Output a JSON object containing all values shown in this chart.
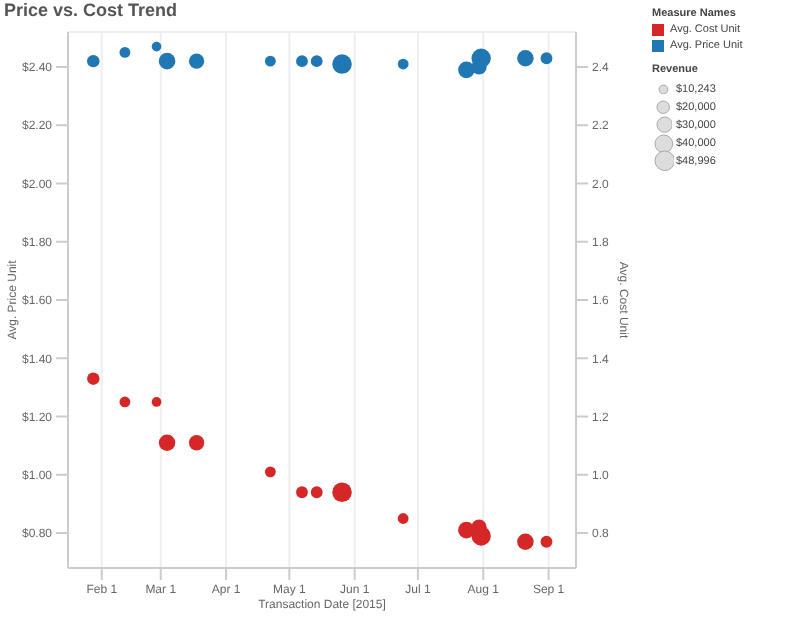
{
  "chart_data": {
    "type": "scatter",
    "title": "Price vs. Cost Trend",
    "xlabel": "Transaction Date [2015]",
    "ylabel": "Avg. Price Unit",
    "y2label": "Avg. Cost Unit",
    "legend_title": "Measure Names",
    "grid": true,
    "legend": "right",
    "marker": "circle",
    "x": [
      "2015-01-28",
      "2015-02-12",
      "2015-02-27",
      "2015-03-04",
      "2015-03-18",
      "2015-04-22",
      "2015-05-07",
      "2015-05-14",
      "2015-05-26",
      "2015-06-24",
      "2015-07-24",
      "2015-07-30",
      "2015-07-31",
      "2015-08-21",
      "2015-08-31"
    ],
    "series": [
      {
        "name": "Avg. Cost Unit",
        "color": "#d62728",
        "axis": "y2",
        "values": [
          1.33,
          1.25,
          1.25,
          1.11,
          1.11,
          1.01,
          0.94,
          0.94,
          0.94,
          0.85,
          0.81,
          0.82,
          0.79,
          0.77,
          0.77
        ],
        "sizes": [
          20000,
          15000,
          12000,
          35000,
          30000,
          15000,
          18000,
          18000,
          48996,
          15000,
          35000,
          30000,
          48000,
          35000,
          18000
        ]
      },
      {
        "name": "Avg. Price Unit",
        "color": "#1f77b4",
        "values": [
          2.42,
          2.45,
          2.47,
          2.42,
          2.42,
          2.42,
          2.42,
          2.42,
          2.41,
          2.41,
          2.39,
          2.4,
          2.43,
          2.43,
          2.43
        ],
        "sizes": [
          20000,
          15000,
          12000,
          35000,
          30000,
          15000,
          18000,
          18000,
          48996,
          15000,
          35000,
          30000,
          48000,
          35000,
          18000
        ]
      }
    ],
    "annotations": [
      "Revenue"
    ],
    "size_legend": [
      {
        "value": 10243,
        "label": "$10,243"
      },
      {
        "value": 20000,
        "label": "$20,000"
      },
      {
        "value": 30000,
        "label": "$30,000"
      },
      {
        "value": 40000,
        "label": "$40,000"
      },
      {
        "value": 48996,
        "label": "$48,996"
      }
    ],
    "xlim": [
      "2015-01-16",
      "2015-09-14"
    ],
    "xticks": [
      {
        "value": "2015-02-01",
        "label": "Feb 1"
      },
      {
        "value": "2015-03-01",
        "label": "Mar 1"
      },
      {
        "value": "2015-04-01",
        "label": "Apr 1"
      },
      {
        "value": "2015-05-01",
        "label": "May 1"
      },
      {
        "value": "2015-06-01",
        "label": "Jun 1"
      },
      {
        "value": "2015-07-01",
        "label": "Jul 1"
      },
      {
        "value": "2015-08-01",
        "label": "Aug 1"
      },
      {
        "value": "2015-09-01",
        "label": "Sep 1"
      }
    ],
    "ylim": [
      0.68,
      2.52
    ],
    "yticks": [
      {
        "value": 0.8,
        "label": "$0.80"
      },
      {
        "value": 1.0,
        "label": "$1.00"
      },
      {
        "value": 1.2,
        "label": "$1.20"
      },
      {
        "value": 1.4,
        "label": "$1.40"
      },
      {
        "value": 1.6,
        "label": "$1.60"
      },
      {
        "value": 1.8,
        "label": "$1.80"
      },
      {
        "value": 2.0,
        "label": "$2.00"
      },
      {
        "value": 2.2,
        "label": "$2.20"
      },
      {
        "value": 2.4,
        "label": "$2.40"
      }
    ],
    "y2lim": [
      0.68,
      2.52
    ],
    "y2ticks": [
      0.8,
      {
        "value": 1.0,
        "label": "1.0"
      },
      1.2,
      1.4,
      1.6,
      1.8,
      {
        "value": 2.0,
        "label": "2.0"
      },
      2.2,
      2.4
    ]
  }
}
